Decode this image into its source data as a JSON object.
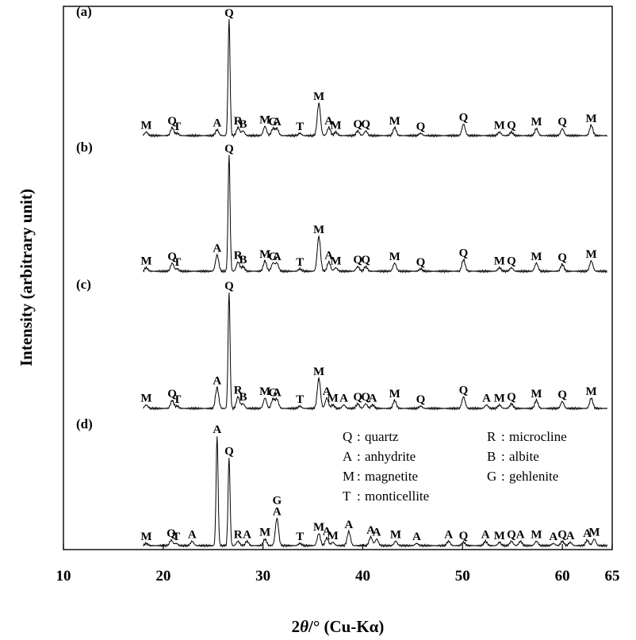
{
  "chart_data": {
    "type": "line",
    "title": "",
    "xlabel_prefix": "2",
    "xlabel_theta": "θ",
    "xlabel_suffix": "/° (Cu-Kα)",
    "ylabel": "Intensity (arbitrary unit)",
    "xlim": [
      10,
      65
    ],
    "xticks": [
      10,
      20,
      30,
      40,
      50,
      60,
      65
    ],
    "grid": false,
    "legend_position": "inside-bottom-panel",
    "legend": [
      {
        "code": "Q",
        "name": "quartz"
      },
      {
        "code": "R",
        "name": "microcline"
      },
      {
        "code": "A",
        "name": "anhydrite"
      },
      {
        "code": "B",
        "name": "albite"
      },
      {
        "code": "M",
        "name": "magnetite"
      },
      {
        "code": "G",
        "name": "gehlenite"
      },
      {
        "code": "T",
        "name": "monticellite"
      }
    ],
    "series": [
      {
        "label": "(a)",
        "peaks": [
          {
            "x": 18.3,
            "h": 0.03,
            "mark": [
              "M"
            ]
          },
          {
            "x": 20.9,
            "h": 0.07,
            "mark": [
              "Q"
            ]
          },
          {
            "x": 21.4,
            "h": 0.02,
            "mark": [
              "T"
            ]
          },
          {
            "x": 25.4,
            "h": 0.05,
            "mark": [
              "A"
            ]
          },
          {
            "x": 26.6,
            "h": 1.0,
            "mark": [
              "Q"
            ]
          },
          {
            "x": 27.5,
            "h": 0.07,
            "mark": [
              "R"
            ]
          },
          {
            "x": 28.0,
            "h": 0.04,
            "mark": [
              "B"
            ]
          },
          {
            "x": 30.2,
            "h": 0.08,
            "mark": [
              "M"
            ]
          },
          {
            "x": 31.0,
            "h": 0.06,
            "mark": [
              "G"
            ]
          },
          {
            "x": 31.4,
            "h": 0.06,
            "mark": [
              "A"
            ]
          },
          {
            "x": 33.7,
            "h": 0.02,
            "mark": [
              "T"
            ]
          },
          {
            "x": 35.6,
            "h": 0.28,
            "mark": [
              "M"
            ]
          },
          {
            "x": 36.6,
            "h": 0.07,
            "mark": [
              "A"
            ]
          },
          {
            "x": 37.3,
            "h": 0.03,
            "mark": [
              "M"
            ]
          },
          {
            "x": 39.5,
            "h": 0.04,
            "mark": [
              "Q"
            ]
          },
          {
            "x": 40.3,
            "h": 0.04,
            "mark": [
              "Q"
            ]
          },
          {
            "x": 43.2,
            "h": 0.07,
            "mark": [
              "M"
            ]
          },
          {
            "x": 45.8,
            "h": 0.02,
            "mark": [
              "Q"
            ]
          },
          {
            "x": 50.1,
            "h": 0.1,
            "mark": [
              "Q"
            ]
          },
          {
            "x": 53.7,
            "h": 0.03,
            "mark": [
              "M"
            ]
          },
          {
            "x": 54.9,
            "h": 0.03,
            "mark": [
              "Q"
            ]
          },
          {
            "x": 57.4,
            "h": 0.06,
            "mark": [
              "M"
            ]
          },
          {
            "x": 60.0,
            "h": 0.06,
            "mark": [
              "Q"
            ]
          },
          {
            "x": 62.9,
            "h": 0.09,
            "mark": [
              "M"
            ]
          }
        ]
      },
      {
        "label": "(b)",
        "peaks": [
          {
            "x": 18.3,
            "h": 0.03,
            "mark": [
              "M"
            ]
          },
          {
            "x": 20.9,
            "h": 0.07,
            "mark": [
              "Q"
            ]
          },
          {
            "x": 21.4,
            "h": 0.02,
            "mark": [
              "T"
            ]
          },
          {
            "x": 25.4,
            "h": 0.14,
            "mark": [
              "A"
            ]
          },
          {
            "x": 26.6,
            "h": 1.0,
            "mark": [
              "Q"
            ]
          },
          {
            "x": 27.5,
            "h": 0.08,
            "mark": [
              "R"
            ]
          },
          {
            "x": 28.0,
            "h": 0.04,
            "mark": [
              "B"
            ]
          },
          {
            "x": 30.2,
            "h": 0.09,
            "mark": [
              "M"
            ]
          },
          {
            "x": 31.0,
            "h": 0.07,
            "mark": [
              "G"
            ]
          },
          {
            "x": 31.4,
            "h": 0.07,
            "mark": [
              "A"
            ]
          },
          {
            "x": 33.7,
            "h": 0.02,
            "mark": [
              "T"
            ]
          },
          {
            "x": 35.6,
            "h": 0.3,
            "mark": [
              "M"
            ]
          },
          {
            "x": 36.6,
            "h": 0.08,
            "mark": [
              "A"
            ]
          },
          {
            "x": 37.3,
            "h": 0.03,
            "mark": [
              "M"
            ]
          },
          {
            "x": 39.5,
            "h": 0.04,
            "mark": [
              "Q"
            ]
          },
          {
            "x": 40.3,
            "h": 0.04,
            "mark": [
              "Q"
            ]
          },
          {
            "x": 43.2,
            "h": 0.07,
            "mark": [
              "M"
            ]
          },
          {
            "x": 45.8,
            "h": 0.02,
            "mark": [
              "Q"
            ]
          },
          {
            "x": 50.1,
            "h": 0.1,
            "mark": [
              "Q"
            ]
          },
          {
            "x": 53.7,
            "h": 0.03,
            "mark": [
              "M"
            ]
          },
          {
            "x": 54.9,
            "h": 0.03,
            "mark": [
              "Q"
            ]
          },
          {
            "x": 57.4,
            "h": 0.07,
            "mark": [
              "M"
            ]
          },
          {
            "x": 60.0,
            "h": 0.06,
            "mark": [
              "Q"
            ]
          },
          {
            "x": 62.9,
            "h": 0.09,
            "mark": [
              "M"
            ]
          }
        ]
      },
      {
        "label": "(c)",
        "peaks": [
          {
            "x": 18.3,
            "h": 0.03,
            "mark": [
              "M"
            ]
          },
          {
            "x": 20.9,
            "h": 0.07,
            "mark": [
              "Q"
            ]
          },
          {
            "x": 21.4,
            "h": 0.02,
            "mark": [
              "T"
            ]
          },
          {
            "x": 25.4,
            "h": 0.18,
            "mark": [
              "A"
            ]
          },
          {
            "x": 26.6,
            "h": 1.0,
            "mark": [
              "Q"
            ]
          },
          {
            "x": 27.5,
            "h": 0.1,
            "mark": [
              "R"
            ]
          },
          {
            "x": 28.0,
            "h": 0.04,
            "mark": [
              "B"
            ]
          },
          {
            "x": 30.2,
            "h": 0.09,
            "mark": [
              "M"
            ]
          },
          {
            "x": 31.0,
            "h": 0.08,
            "mark": [
              "G"
            ]
          },
          {
            "x": 31.4,
            "h": 0.08,
            "mark": [
              "A"
            ]
          },
          {
            "x": 33.7,
            "h": 0.02,
            "mark": [
              "T"
            ]
          },
          {
            "x": 35.6,
            "h": 0.26,
            "mark": [
              "M"
            ]
          },
          {
            "x": 36.4,
            "h": 0.09,
            "mark": [
              "A"
            ]
          },
          {
            "x": 37.0,
            "h": 0.03,
            "mark": [
              "M"
            ]
          },
          {
            "x": 38.1,
            "h": 0.03,
            "mark": [
              "A"
            ]
          },
          {
            "x": 39.5,
            "h": 0.04,
            "mark": [
              "Q"
            ]
          },
          {
            "x": 40.3,
            "h": 0.04,
            "mark": [
              "Q"
            ]
          },
          {
            "x": 41.0,
            "h": 0.03,
            "mark": [
              "A"
            ]
          },
          {
            "x": 43.2,
            "h": 0.07,
            "mark": [
              "M"
            ]
          },
          {
            "x": 45.8,
            "h": 0.02,
            "mark": [
              "Q"
            ]
          },
          {
            "x": 50.1,
            "h": 0.1,
            "mark": [
              "Q"
            ]
          },
          {
            "x": 52.4,
            "h": 0.03,
            "mark": [
              "A"
            ]
          },
          {
            "x": 53.7,
            "h": 0.03,
            "mark": [
              "M"
            ]
          },
          {
            "x": 54.9,
            "h": 0.04,
            "mark": [
              "Q"
            ]
          },
          {
            "x": 57.4,
            "h": 0.07,
            "mark": [
              "M"
            ]
          },
          {
            "x": 60.0,
            "h": 0.06,
            "mark": [
              "Q"
            ]
          },
          {
            "x": 62.9,
            "h": 0.09,
            "mark": [
              "M"
            ]
          }
        ]
      },
      {
        "label": "(d)",
        "peaks": [
          {
            "x": 18.3,
            "h": 0.02,
            "mark": [
              "M"
            ]
          },
          {
            "x": 20.8,
            "h": 0.05,
            "mark": [
              "Q"
            ]
          },
          {
            "x": 21.3,
            "h": 0.02,
            "mark": [
              "T"
            ]
          },
          {
            "x": 22.9,
            "h": 0.04,
            "mark": [
              "A"
            ]
          },
          {
            "x": 25.4,
            "h": 1.0,
            "mark": [
              "A"
            ]
          },
          {
            "x": 26.6,
            "h": 0.8,
            "mark": [
              "Q"
            ]
          },
          {
            "x": 27.5,
            "h": 0.04,
            "mark": [
              "R"
            ]
          },
          {
            "x": 28.4,
            "h": 0.04,
            "mark": [
              "A"
            ]
          },
          {
            "x": 30.2,
            "h": 0.06,
            "mark": [
              "M"
            ]
          },
          {
            "x": 31.4,
            "h": 0.25,
            "mark": [
              "G",
              "A"
            ]
          },
          {
            "x": 33.7,
            "h": 0.02,
            "mark": [
              "T"
            ]
          },
          {
            "x": 35.6,
            "h": 0.11,
            "mark": [
              "M"
            ]
          },
          {
            "x": 36.4,
            "h": 0.07,
            "mark": [
              "A"
            ]
          },
          {
            "x": 37.0,
            "h": 0.03,
            "mark": [
              "M"
            ]
          },
          {
            "x": 38.6,
            "h": 0.13,
            "mark": [
              "A"
            ]
          },
          {
            "x": 40.8,
            "h": 0.08,
            "mark": [
              "A"
            ]
          },
          {
            "x": 41.4,
            "h": 0.06,
            "mark": [
              "A"
            ]
          },
          {
            "x": 43.3,
            "h": 0.04,
            "mark": [
              "M"
            ]
          },
          {
            "x": 45.4,
            "h": 0.02,
            "mark": [
              "A"
            ]
          },
          {
            "x": 48.6,
            "h": 0.04,
            "mark": [
              "A"
            ]
          },
          {
            "x": 50.1,
            "h": 0.03,
            "mark": [
              "Q"
            ]
          },
          {
            "x": 52.3,
            "h": 0.04,
            "mark": [
              "A"
            ]
          },
          {
            "x": 53.7,
            "h": 0.03,
            "mark": [
              "M"
            ]
          },
          {
            "x": 54.9,
            "h": 0.04,
            "mark": [
              "Q"
            ]
          },
          {
            "x": 55.8,
            "h": 0.04,
            "mark": [
              "A"
            ]
          },
          {
            "x": 57.4,
            "h": 0.04,
            "mark": [
              "M"
            ]
          },
          {
            "x": 59.1,
            "h": 0.02,
            "mark": [
              "A"
            ]
          },
          {
            "x": 60.0,
            "h": 0.04,
            "mark": [
              "Q"
            ]
          },
          {
            "x": 60.8,
            "h": 0.03,
            "mark": [
              "A"
            ]
          },
          {
            "x": 62.5,
            "h": 0.05,
            "mark": [
              "A"
            ]
          },
          {
            "x": 63.2,
            "h": 0.06,
            "mark": [
              "M"
            ]
          }
        ]
      }
    ]
  }
}
